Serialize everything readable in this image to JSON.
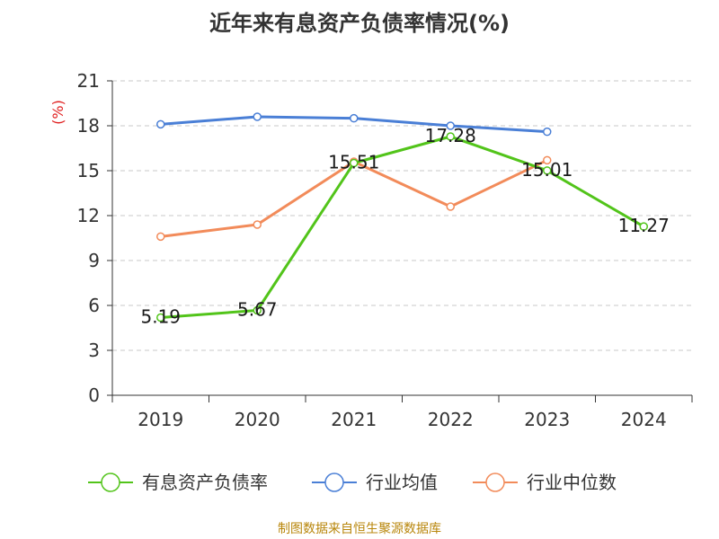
{
  "chart_data": {
    "type": "line",
    "title": "近年来有息资产负债率情况(%)",
    "ylabel": "(%)",
    "xlabel": "",
    "categories": [
      "2019",
      "2020",
      "2021",
      "2022",
      "2023",
      "2024"
    ],
    "ylim": [
      0,
      21
    ],
    "yticks": [
      0,
      3,
      6,
      9,
      12,
      15,
      18,
      21
    ],
    "grid": true,
    "legend_position": "bottom",
    "series": [
      {
        "name": "有息资产负债率",
        "color": "#52c41a",
        "show_labels": true,
        "values": [
          5.19,
          5.67,
          15.51,
          17.28,
          15.01,
          11.27
        ],
        "labels": [
          "5.19",
          "5.67",
          "15.51",
          "17.28",
          "15.01",
          "11.27"
        ]
      },
      {
        "name": "行业均值",
        "color": "#4a7fd6",
        "show_labels": false,
        "values": [
          18.1,
          18.6,
          18.5,
          18.0,
          17.6,
          null
        ]
      },
      {
        "name": "行业中位数",
        "color": "#f28b5a",
        "show_labels": false,
        "values": [
          10.6,
          11.4,
          15.6,
          12.6,
          15.7,
          null
        ]
      }
    ],
    "source": "制图数据来自恒生聚源数据库"
  }
}
